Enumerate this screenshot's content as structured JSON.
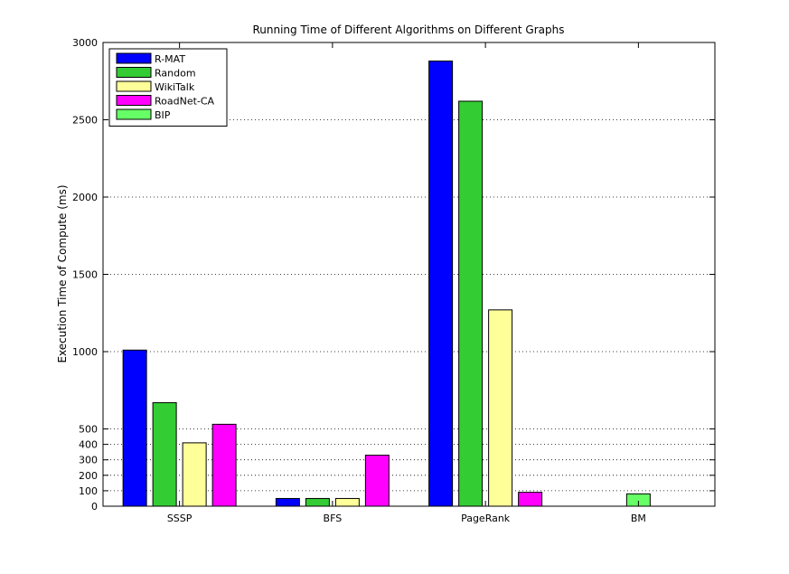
{
  "chart_data": {
    "type": "bar",
    "title": "Running Time of Different Algorithms on Different Graphs",
    "xlabel": "",
    "ylabel": "Execution Time of Compute (ms)",
    "ylim": [
      0,
      3000
    ],
    "yticks": [
      0,
      100,
      200,
      300,
      400,
      500,
      1000,
      1500,
      2000,
      2500,
      3000
    ],
    "categories": [
      "SSSP",
      "BFS",
      "PageRank",
      "BM"
    ],
    "grid": "y-dotted",
    "legend_position": "top-left",
    "series": [
      {
        "name": "R-MAT",
        "color": "#0000ff",
        "values": [
          1010,
          50,
          2880,
          null
        ]
      },
      {
        "name": "Random",
        "color": "#33cc33",
        "values": [
          670,
          50,
          2620,
          null
        ]
      },
      {
        "name": "WikiTalk",
        "color": "#ffff99",
        "values": [
          410,
          50,
          1270,
          null
        ]
      },
      {
        "name": "RoadNet-CA",
        "color": "#ff00ff",
        "values": [
          530,
          330,
          90,
          null
        ]
      },
      {
        "name": "BIP",
        "color": "#66ff66",
        "values": [
          null,
          null,
          null,
          80
        ]
      }
    ]
  }
}
